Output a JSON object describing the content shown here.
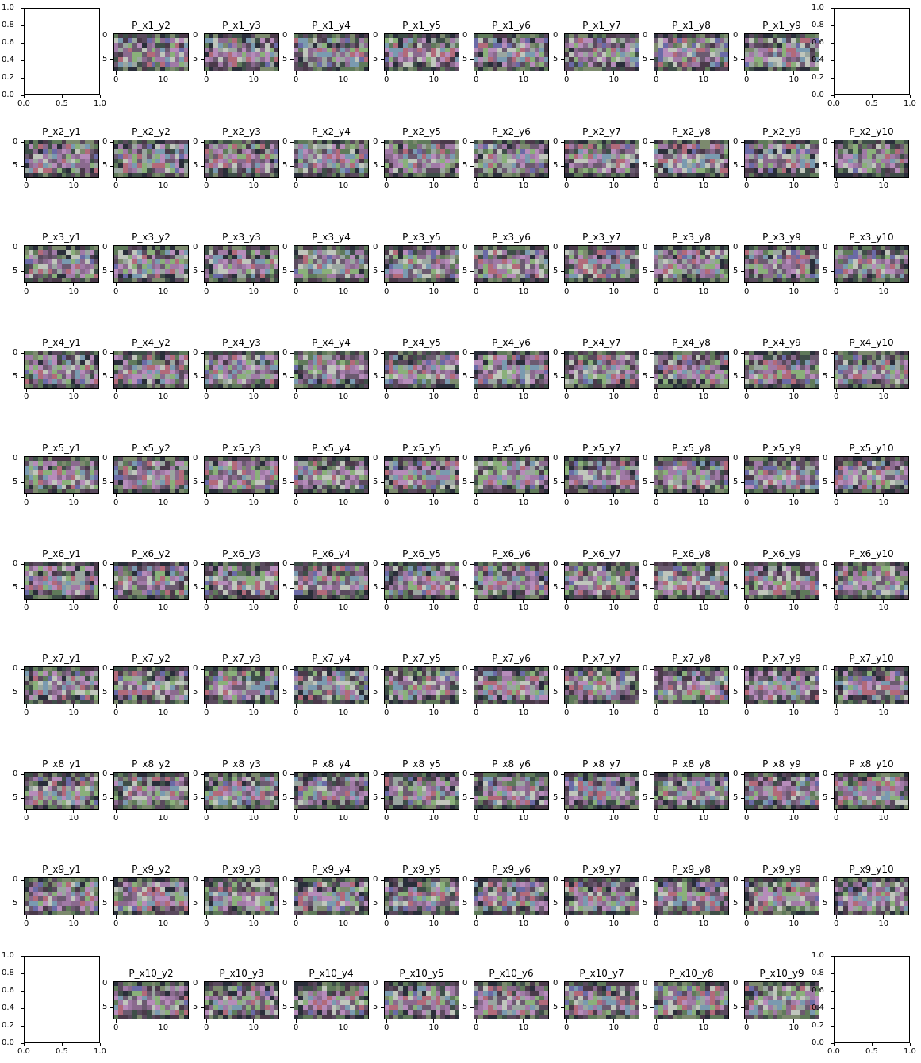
{
  "chart_data": {
    "type": "heatmap",
    "layout": "grid of image panels, 10 rows x 10 columns",
    "panel_image_shape": {
      "rows": 8,
      "cols": 16
    },
    "panel_x_ticks": [
      0,
      10
    ],
    "panel_y_ticks": [
      0,
      5
    ],
    "empty_axes_ticks": [
      "0.0",
      "0.2",
      "0.4",
      "0.6",
      "0.8",
      "1.0"
    ],
    "empty_axes_x_ticks": [
      "0.0",
      "0.5",
      "1.0"
    ],
    "empty_axes_positions": [
      "row 1 col 1",
      "row 1 col 10",
      "row 10 col 1",
      "row 10 col 10"
    ],
    "panels": [
      [
        "",
        "P_x1_y2",
        "P_x1_y3",
        "P_x1_y4",
        "P_x1_y5",
        "P_x1_y6",
        "P_x1_y7",
        "P_x1_y8",
        "P_x1_y9",
        ""
      ],
      [
        "P_x2_y1",
        "P_x2_y2",
        "P_x2_y3",
        "P_x2_y4",
        "P_x2_y5",
        "P_x2_y6",
        "P_x2_y7",
        "P_x2_y8",
        "P_x2_y9",
        "P_x2_y10"
      ],
      [
        "P_x3_y1",
        "P_x3_y2",
        "P_x3_y3",
        "P_x3_y4",
        "P_x3_y5",
        "P_x3_y6",
        "P_x3_y7",
        "P_x3_y8",
        "P_x3_y9",
        "P_x3_y10"
      ],
      [
        "P_x4_y1",
        "P_x4_y2",
        "P_x4_y3",
        "P_x4_y4",
        "P_x4_y5",
        "P_x4_y6",
        "P_x4_y7",
        "P_x4_y8",
        "P_x4_y9",
        "P_x4_y10"
      ],
      [
        "P_x5_y1",
        "P_x5_y2",
        "P_x5_y3",
        "P_x5_y4",
        "P_x5_y5",
        "P_x5_y6",
        "P_x5_y7",
        "P_x5_y8",
        "P_x5_y9",
        "P_x5_y10"
      ],
      [
        "P_x6_y1",
        "P_x6_y2",
        "P_x6_y3",
        "P_x6_y4",
        "P_x6_y5",
        "P_x6_y6",
        "P_x6_y7",
        "P_x6_y8",
        "P_x6_y9",
        "P_x6_y10"
      ],
      [
        "P_x7_y1",
        "P_x7_y2",
        "P_x7_y3",
        "P_x7_y4",
        "P_x7_y5",
        "P_x7_y6",
        "P_x7_y7",
        "P_x7_y8",
        "P_x7_y9",
        "P_x7_y10"
      ],
      [
        "P_x8_y1",
        "P_x8_y2",
        "P_x8_y3",
        "P_x8_y4",
        "P_x8_y5",
        "P_x8_y6",
        "P_x8_y7",
        "P_x8_y8",
        "P_x8_y9",
        "P_x8_y10"
      ],
      [
        "P_x9_y1",
        "P_x9_y2",
        "P_x9_y3",
        "P_x9_y4",
        "P_x9_y5",
        "P_x9_y6",
        "P_x9_y7",
        "P_x9_y8",
        "P_x9_y9",
        "P_x9_y10"
      ],
      [
        "",
        "P_x10_y2",
        "P_x10_y3",
        "P_x10_y4",
        "P_x10_y5",
        "P_x10_y6",
        "P_x10_y7",
        "P_x10_y8",
        "P_x10_y9",
        ""
      ]
    ],
    "palette": [
      "#5a4a5e",
      "#6b5a70",
      "#8a6a8e",
      "#a07aa6",
      "#b68cba",
      "#7c8a6e",
      "#5f7a5a",
      "#3e4e48",
      "#2a2e3a",
      "#4a3a4a",
      "#9aa6a0",
      "#c0c6bc",
      "#7a9ab0",
      "#b26a7a",
      "#8ab07a",
      "#6a6aa6"
    ]
  }
}
